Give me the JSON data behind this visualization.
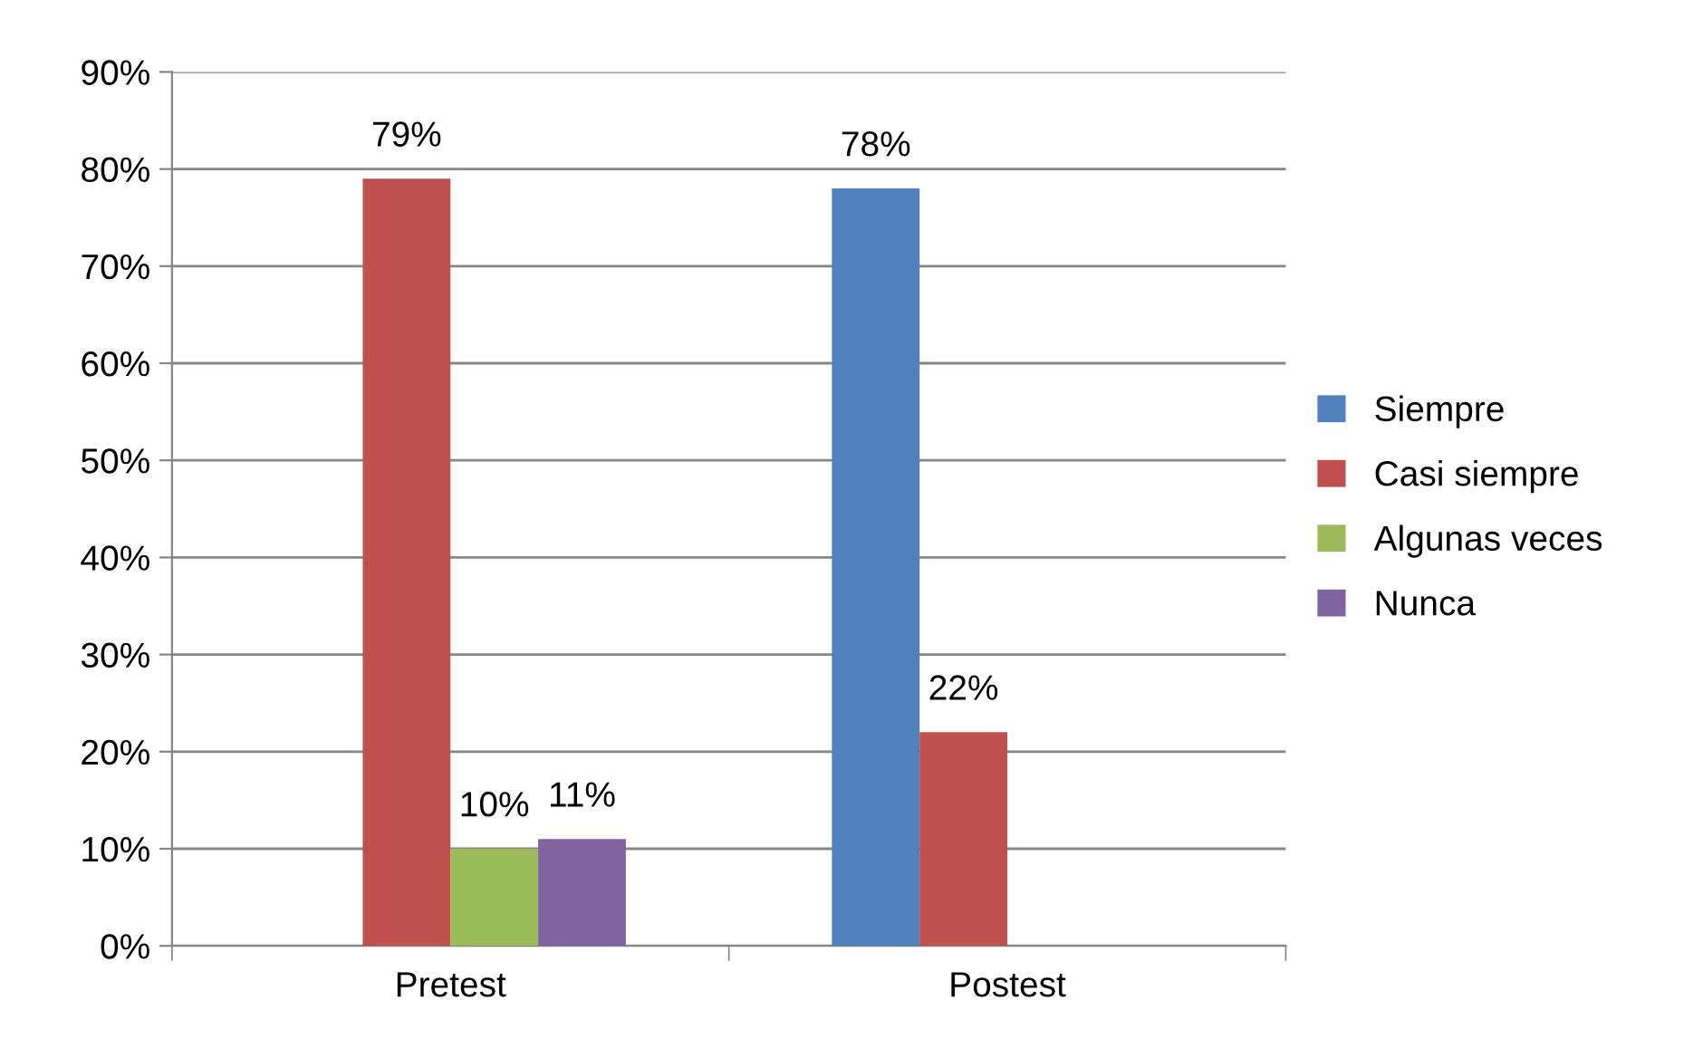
{
  "chart_data": {
    "type": "bar",
    "categories": [
      "Pretest",
      "Postest"
    ],
    "series": [
      {
        "name": "Siempre",
        "color": "#4f81bd",
        "values": [
          null,
          78
        ],
        "value_labels": [
          null,
          "78%"
        ]
      },
      {
        "name": "Casi siempre",
        "color": "#c0504d",
        "values": [
          79,
          22
        ],
        "value_labels": [
          "79%",
          "22%"
        ]
      },
      {
        "name": "Algunas veces",
        "color": "#9bbb59",
        "values": [
          10,
          null
        ],
        "value_labels": [
          "10%",
          null
        ]
      },
      {
        "name": "Nunca",
        "color": "#8064a2",
        "values": [
          11,
          null
        ],
        "value_labels": [
          "11%",
          null
        ]
      }
    ],
    "ylim": [
      0,
      90
    ],
    "yticks": [
      {
        "value": 0,
        "label": "0%"
      },
      {
        "value": 10,
        "label": "10%"
      },
      {
        "value": 20,
        "label": "20%"
      },
      {
        "value": 30,
        "label": "30%"
      },
      {
        "value": 40,
        "label": "40%"
      },
      {
        "value": 50,
        "label": "50%"
      },
      {
        "value": 60,
        "label": "60%"
      },
      {
        "value": 70,
        "label": "70%"
      },
      {
        "value": 80,
        "label": "80%"
      },
      {
        "value": 90,
        "label": "90%"
      }
    ],
    "grid": "y",
    "legend": "right"
  }
}
